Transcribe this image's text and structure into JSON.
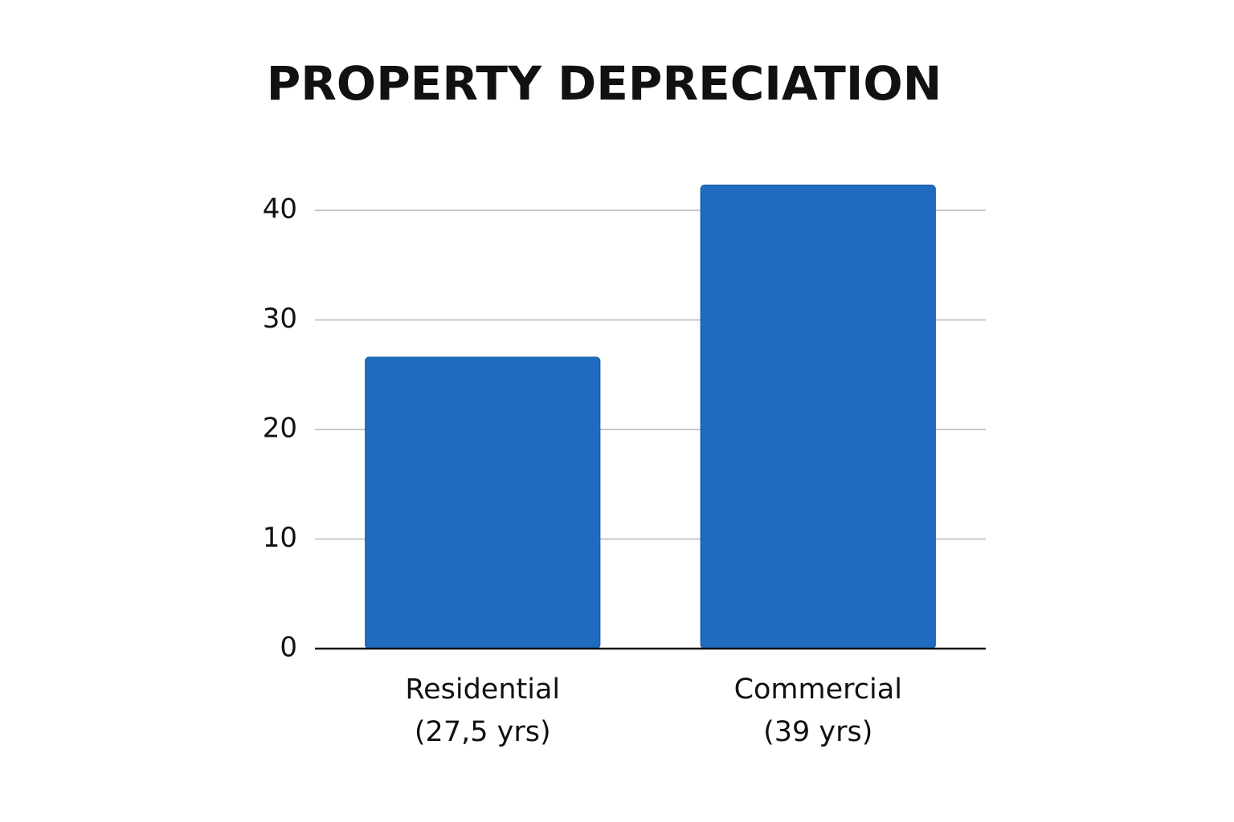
{
  "chart_data": {
    "type": "bar",
    "title": "PROPERTY DEPRECIATION",
    "categories": [
      [
        "Residential",
        "(27,5 yrs)"
      ],
      [
        "Commercial",
        "(39 yrs)"
      ]
    ],
    "values": [
      26.6,
      42.3
    ],
    "color": "#1f6bbf",
    "ylim": [
      0,
      43
    ],
    "yticks": [
      0,
      10,
      20,
      30,
      40
    ],
    "grid": true
  }
}
